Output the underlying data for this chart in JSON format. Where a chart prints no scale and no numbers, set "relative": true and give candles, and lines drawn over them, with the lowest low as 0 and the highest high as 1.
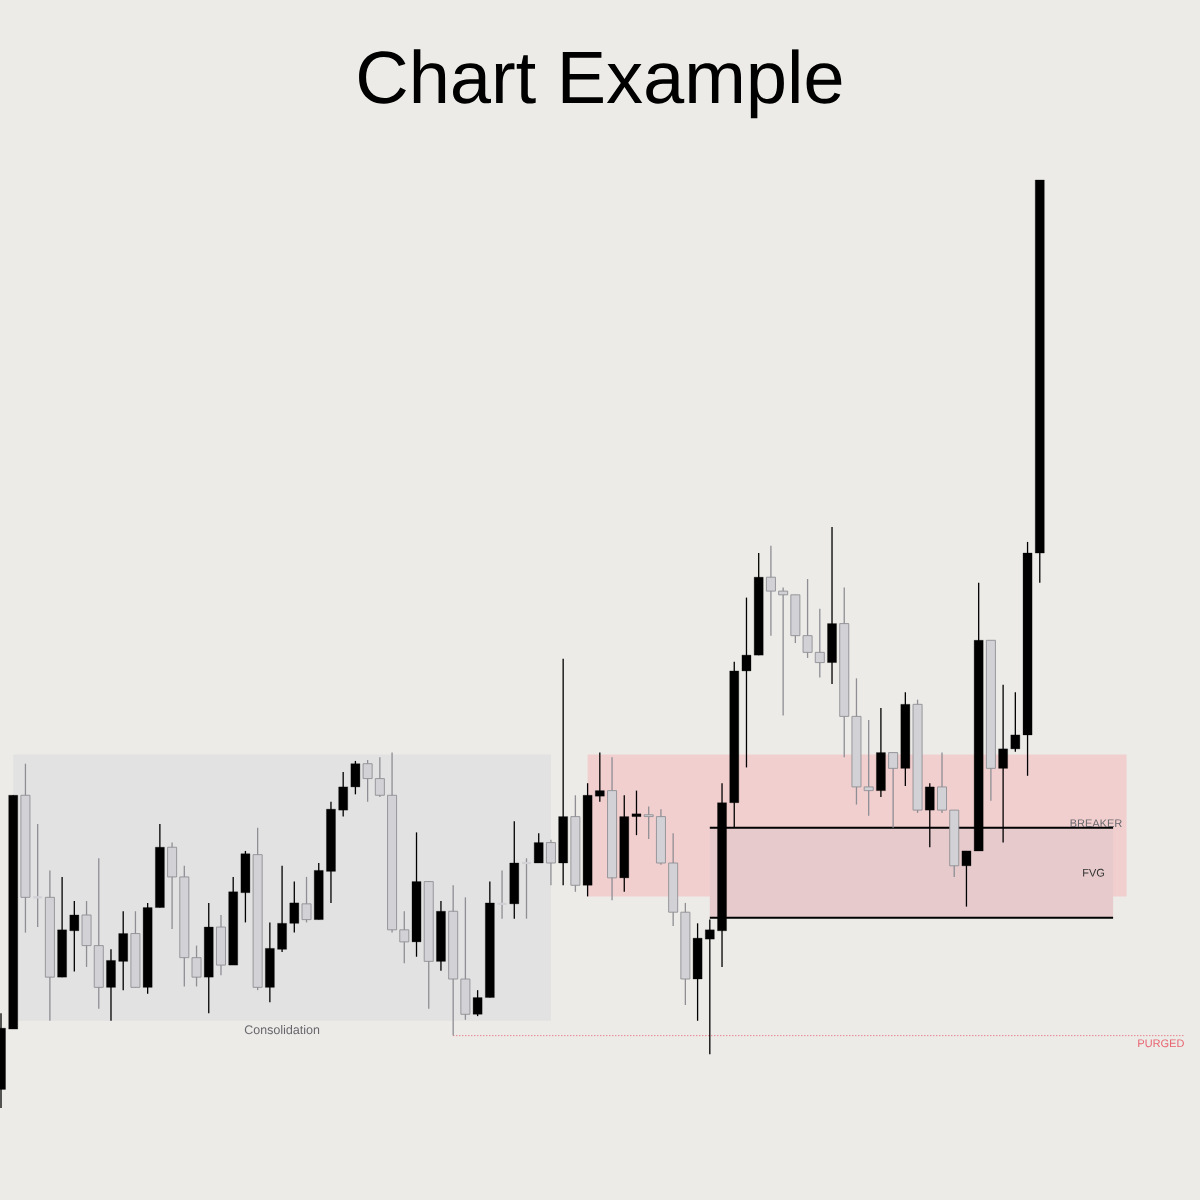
{
  "chart_data": {
    "type": "candlestick",
    "title": "Chart Example",
    "relative": true,
    "categories": [
      null,
      null,
      null,
      null,
      null,
      null,
      null,
      null,
      null,
      null,
      null,
      null,
      null,
      null,
      null,
      null,
      null,
      null,
      null,
      null,
      null,
      null,
      null,
      null,
      null,
      null,
      null,
      null,
      null,
      null,
      null,
      null,
      null,
      null,
      null,
      null,
      null,
      null,
      null,
      null,
      null,
      null,
      null,
      null,
      null,
      null,
      null,
      null,
      null,
      null,
      null,
      null,
      null,
      null,
      null,
      null,
      null,
      null,
      null,
      null,
      null,
      null,
      null,
      null,
      null,
      null,
      null,
      null,
      null,
      null,
      null,
      null,
      null,
      null,
      null,
      null,
      null,
      null,
      null,
      null,
      null,
      null,
      null,
      null,
      null,
      null
    ],
    "ohlc": [
      [
        0.02,
        0.102,
        0,
        0.086
      ],
      [
        0.085,
        0.337,
        0.085,
        0.337
      ],
      [
        0.337,
        0.371,
        0.189,
        0.227
      ],
      [
        0.227,
        0.306,
        0.195,
        0.227
      ],
      [
        0.227,
        0.256,
        0.094,
        0.141
      ],
      [
        0.141,
        0.249,
        0.141,
        0.192
      ],
      [
        0.191,
        0.223,
        0.147,
        0.208
      ],
      [
        0.208,
        0.223,
        0.152,
        0.175
      ],
      [
        0.175,
        0.269,
        0.107,
        0.13
      ],
      [
        0.13,
        0.171,
        0.094,
        0.159
      ],
      [
        0.158,
        0.212,
        0.127,
        0.188
      ],
      [
        0.188,
        0.212,
        0.13,
        0.13
      ],
      [
        0.13,
        0.221,
        0.123,
        0.216
      ],
      [
        0.216,
        0.306,
        0.216,
        0.281
      ],
      [
        0.281,
        0.286,
        0.193,
        0.249
      ],
      [
        0.249,
        0.261,
        0.131,
        0.162
      ],
      [
        0.162,
        0.175,
        0.131,
        0.141
      ],
      [
        0.141,
        0.221,
        0.102,
        0.195
      ],
      [
        0.195,
        0.208,
        0.143,
        0.154
      ],
      [
        0.154,
        0.249,
        0.154,
        0.233
      ],
      [
        0.232,
        0.277,
        0.2,
        0.274
      ],
      [
        0.273,
        0.302,
        0.127,
        0.13
      ],
      [
        0.13,
        0.2,
        0.114,
        0.172
      ],
      [
        0.171,
        0.261,
        0.168,
        0.199
      ],
      [
        0.199,
        0.244,
        0.189,
        0.221
      ],
      [
        0.22,
        0.249,
        0.2,
        0.203
      ],
      [
        0.203,
        0.264,
        0.203,
        0.256
      ],
      [
        0.255,
        0.33,
        0.221,
        0.322
      ],
      [
        0.321,
        0.362,
        0.314,
        0.346
      ],
      [
        0.346,
        0.374,
        0.338,
        0.371
      ],
      [
        0.371,
        0.375,
        0.33,
        0.355
      ],
      [
        0.355,
        0.378,
        0.335,
        0.337
      ],
      [
        0.337,
        0.383,
        0.189,
        0.192
      ],
      [
        0.192,
        0.212,
        0.156,
        0.179
      ],
      [
        0.179,
        0.297,
        0.163,
        0.244
      ],
      [
        0.244,
        0.244,
        0.107,
        0.158
      ],
      [
        0.158,
        0.223,
        0.148,
        0.212
      ],
      [
        0.212,
        0.24,
        0.078,
        0.139
      ],
      [
        0.139,
        0.227,
        0.095,
        0.101
      ],
      [
        0.101,
        0.127,
        0.099,
        0.119
      ],
      [
        0.119,
        0.244,
        0.119,
        0.221
      ],
      [
        0.22,
        0.256,
        0.204,
        0.22
      ],
      [
        0.22,
        0.309,
        0.204,
        0.264
      ],
      [
        0.264,
        0.269,
        0.204,
        0.264
      ],
      [
        0.264,
        0.296,
        0.264,
        0.286
      ],
      [
        0.286,
        0.289,
        0.24,
        0.264
      ],
      [
        0.264,
        0.484,
        0.24,
        0.314
      ],
      [
        0.314,
        0.337,
        0.233,
        0.24
      ],
      [
        0.24,
        0.35,
        0.228,
        0.337
      ],
      [
        0.336,
        0.383,
        0.33,
        0.342
      ],
      [
        0.342,
        0.378,
        0.224,
        0.248
      ],
      [
        0.248,
        0.337,
        0.233,
        0.314
      ],
      [
        0.314,
        0.342,
        0.294,
        0.317
      ],
      [
        0.316,
        0.325,
        0.29,
        0.314
      ],
      [
        0.314,
        0.322,
        0.262,
        0.264
      ],
      [
        0.264,
        0.296,
        0.196,
        0.211
      ],
      [
        0.211,
        0.221,
        0.111,
        0.139
      ],
      [
        0.139,
        0.199,
        0.094,
        0.183
      ],
      [
        0.182,
        0.203,
        0.058,
        0.192
      ],
      [
        0.191,
        0.35,
        0.152,
        0.329
      ],
      [
        0.329,
        0.481,
        0.302,
        0.471
      ],
      [
        0.471,
        0.55,
        0.367,
        0.488
      ],
      [
        0.488,
        0.598,
        0.488,
        0.572
      ],
      [
        0.572,
        0.606,
        0.509,
        0.557
      ],
      [
        0.557,
        0.561,
        0.423,
        0.553
      ],
      [
        0.553,
        0.553,
        0.501,
        0.509
      ],
      [
        0.509,
        0.57,
        0.485,
        0.491
      ],
      [
        0.491,
        0.538,
        0.464,
        0.48
      ],
      [
        0.48,
        0.626,
        0.457,
        0.522
      ],
      [
        0.522,
        0.561,
        0.378,
        0.422
      ],
      [
        0.422,
        0.463,
        0.327,
        0.346
      ],
      [
        0.346,
        0.418,
        0.315,
        0.342
      ],
      [
        0.342,
        0.431,
        0.335,
        0.383
      ],
      [
        0.383,
        0.383,
        0.302,
        0.366
      ],
      [
        0.366,
        0.448,
        0.347,
        0.435
      ],
      [
        0.435,
        0.44,
        0.318,
        0.321
      ],
      [
        0.321,
        0.35,
        0.281,
        0.346
      ],
      [
        0.346,
        0.383,
        0.318,
        0.321
      ],
      [
        0.321,
        0.321,
        0.249,
        0.261
      ],
      [
        0.261,
        0.277,
        0.217,
        0.277
      ],
      [
        0.277,
        0.566,
        0.277,
        0.504
      ],
      [
        0.504,
        0.504,
        0.331,
        0.366
      ],
      [
        0.366,
        0.456,
        0.286,
        0.387
      ],
      [
        0.387,
        0.448,
        0.384,
        0.402
      ],
      [
        0.402,
        0.61,
        0.358,
        0.598
      ],
      [
        0.598,
        1,
        0.566,
        1
      ]
    ],
    "colors": [
      "#000000",
      "#000000",
      "#d1d1d6",
      "#d1d1d6",
      "#d1d1d6",
      "#000000",
      "#000000",
      "#d1d1d6",
      "#d1d1d6",
      "#000000",
      "#000000",
      "#d1d1d6",
      "#000000",
      "#000000",
      "#d1d1d6",
      "#d1d1d6",
      "#d1d1d6",
      "#000000",
      "#d1d1d6",
      "#000000",
      "#000000",
      "#d1d1d6",
      "#000000",
      "#000000",
      "#000000",
      "#d1d1d6",
      "#000000",
      "#000000",
      "#000000",
      "#000000",
      "#d1d1d6",
      "#d1d1d6",
      "#d1d1d6",
      "#d1d1d6",
      "#000000",
      "#d1d1d6",
      "#000000",
      "#d1d1d6",
      "#d1d1d6",
      "#000000",
      "#000000",
      "#d1d1d6",
      "#000000",
      "#d1d1d6",
      "#000000",
      "#d1d1d6",
      "#000000",
      "#d1d1d6",
      "#000000",
      "#000000",
      "#d1d1d6",
      "#000000",
      "#000000",
      "#d1d1d6",
      "#d1d1d6",
      "#d1d1d6",
      "#d1d1d6",
      "#000000",
      "#000000",
      "#000000",
      "#000000",
      "#000000",
      "#000000",
      "#d1d1d6",
      "#d1d1d6",
      "#d1d1d6",
      "#d1d1d6",
      "#d1d1d6",
      "#000000",
      "#d1d1d6",
      "#d1d1d6",
      "#d1d1d6",
      "#000000",
      "#d1d1d6",
      "#000000",
      "#d1d1d6",
      "#000000",
      "#d1d1d6",
      "#d1d1d6",
      "#000000",
      "#000000",
      "#d1d1d6",
      "#000000",
      "#000000",
      "#000000",
      "#000000"
    ],
    "bands": [
      {
        "axis": "y",
        "from": 0.094,
        "to": 0.381,
        "label": "Consolidation",
        "color": "#e2e2e2"
      },
      {
        "axis": "y",
        "from": 0.228,
        "to": 0.381,
        "color": "#f2cfcf"
      },
      {
        "axis": "y",
        "from": 0.205,
        "to": 0.302,
        "label": "FVG",
        "color": "#e6cacc"
      }
    ],
    "ref_lines": [
      {
        "axis": "y",
        "value": 0.302,
        "label": "BREAKER",
        "color": "#000000"
      },
      {
        "axis": "y",
        "value": 0.205,
        "color": "#000000"
      },
      {
        "axis": "y",
        "value": 0.078,
        "label": "PURGED",
        "color": "#e8606e",
        "line_style": "dotted"
      }
    ]
  }
}
